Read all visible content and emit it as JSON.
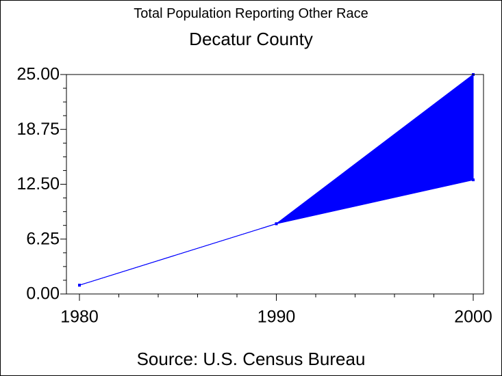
{
  "chart_data": {
    "type": "area",
    "title": "Total Population Reporting Other Race",
    "subtitle": "Decatur County",
    "footnote": "Source: U.S. Census Bureau",
    "x": [
      1980,
      1990,
      2000
    ],
    "x_tick_labels": [
      "1980",
      "1990",
      "2000"
    ],
    "y_tick_labels": [
      "0.00",
      "6.25",
      "12.50",
      "18.75",
      "25.00"
    ],
    "y_ticks": [
      0,
      6.25,
      12.5,
      18.75,
      25
    ],
    "ylim": [
      0,
      25
    ],
    "xlim": [
      1980,
      2000
    ],
    "series": [
      {
        "values": [
          1,
          8,
          25
        ]
      },
      {
        "values": [
          1,
          8,
          13
        ]
      }
    ],
    "fill_between": true,
    "color": "#0000ff",
    "grid": false
  }
}
